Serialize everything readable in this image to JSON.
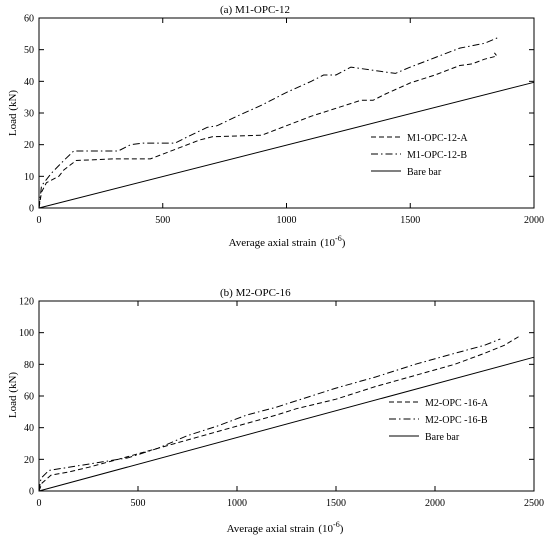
{
  "chart_data": [
    {
      "type": "line",
      "title": "(a) M1-OPC-12",
      "xlabel": "Average axial strain",
      "xlabel_unit_base": "(10",
      "xlabel_unit_exp": "-6",
      "xlabel_unit_close": ")",
      "ylabel": "Load (kN)",
      "xlim": [
        0,
        2000
      ],
      "ylim": [
        0,
        60
      ],
      "xticks": [
        0,
        500,
        1000,
        1500,
        2000
      ],
      "yticks": [
        0,
        10,
        20,
        30,
        40,
        50,
        60
      ],
      "legend_position": "right",
      "series": [
        {
          "name": "M1-OPC-12-A",
          "style": "dashed",
          "points": [
            [
              0,
              0
            ],
            [
              10,
              5
            ],
            [
              30,
              8
            ],
            [
              80,
              10
            ],
            [
              100,
              12
            ],
            [
              150,
              15
            ],
            [
              300,
              15.5
            ],
            [
              450,
              15.5
            ],
            [
              550,
              18.5
            ],
            [
              650,
              21.5
            ],
            [
              700,
              22.5
            ],
            [
              900,
              23
            ],
            [
              1000,
              26
            ],
            [
              1100,
              29
            ],
            [
              1200,
              31.5
            ],
            [
              1300,
              34
            ],
            [
              1350,
              34
            ],
            [
              1400,
              36
            ],
            [
              1500,
              39.5
            ],
            [
              1600,
              42
            ],
            [
              1700,
              45
            ],
            [
              1750,
              45.5
            ],
            [
              1800,
              47
            ],
            [
              1850,
              48
            ],
            [
              1840,
              49
            ]
          ]
        },
        {
          "name": "M1-OPC-12-B",
          "style": "dashdot",
          "points": [
            [
              0,
              0
            ],
            [
              10,
              7
            ],
            [
              50,
              11
            ],
            [
              100,
              15
            ],
            [
              140,
              18
            ],
            [
              250,
              18
            ],
            [
              320,
              18
            ],
            [
              370,
              20
            ],
            [
              420,
              20.5
            ],
            [
              550,
              20.5
            ],
            [
              600,
              22.5
            ],
            [
              680,
              25.5
            ],
            [
              720,
              26
            ],
            [
              800,
              29
            ],
            [
              900,
              32.5
            ],
            [
              1000,
              36.5
            ],
            [
              1100,
              40
            ],
            [
              1150,
              42
            ],
            [
              1200,
              42
            ],
            [
              1260,
              44.5
            ],
            [
              1350,
              43.5
            ],
            [
              1440,
              42.5
            ],
            [
              1500,
              44.5
            ],
            [
              1600,
              47.5
            ],
            [
              1700,
              50.5
            ],
            [
              1800,
              52
            ],
            [
              1860,
              54
            ]
          ]
        },
        {
          "name": "Bare bar",
          "style": "solid",
          "points": [
            [
              0,
              0
            ],
            [
              2000,
              39.7
            ]
          ]
        }
      ]
    },
    {
      "type": "line",
      "title": "(b) M2-OPC-16",
      "xlabel": "Average axial strain",
      "xlabel_unit_base": "(10",
      "xlabel_unit_exp": "-6",
      "xlabel_unit_close": ")",
      "ylabel": "Load (kN)",
      "xlim": [
        0,
        2500
      ],
      "ylim": [
        0,
        120
      ],
      "xticks": [
        0,
        500,
        1000,
        1500,
        2000,
        2500
      ],
      "yticks": [
        0,
        20,
        40,
        60,
        80,
        100,
        120
      ],
      "legend_position": "bottom-right",
      "series": [
        {
          "name": "M2-OPC -16-A",
          "style": "dashed",
          "points": [
            [
              0,
              0
            ],
            [
              15,
              5
            ],
            [
              60,
              10
            ],
            [
              150,
              12
            ],
            [
              250,
              15
            ],
            [
              400,
              20
            ],
            [
              600,
              27
            ],
            [
              800,
              34
            ],
            [
              1000,
              41
            ],
            [
              1200,
              48
            ],
            [
              1300,
              52
            ],
            [
              1500,
              58
            ],
            [
              1700,
              66
            ],
            [
              1900,
              73
            ],
            [
              2100,
              80
            ],
            [
              2250,
              87
            ],
            [
              2350,
              92
            ],
            [
              2430,
              98
            ]
          ]
        },
        {
          "name": "M2-OPC -16-B",
          "style": "dashdot",
          "points": [
            [
              0,
              0
            ],
            [
              10,
              8
            ],
            [
              50,
              13
            ],
            [
              150,
              15
            ],
            [
              300,
              18
            ],
            [
              450,
              21
            ],
            [
              600,
              27
            ],
            [
              750,
              35
            ],
            [
              900,
              41
            ],
            [
              1050,
              48
            ],
            [
              1200,
              53
            ],
            [
              1350,
              59
            ],
            [
              1500,
              65
            ],
            [
              1700,
              72
            ],
            [
              1900,
              80
            ],
            [
              2100,
              87
            ],
            [
              2250,
              92
            ],
            [
              2330,
              96
            ]
          ]
        },
        {
          "name": "Bare bar",
          "style": "solid",
          "points": [
            [
              0,
              0
            ],
            [
              2500,
              84.5
            ]
          ]
        }
      ]
    }
  ]
}
